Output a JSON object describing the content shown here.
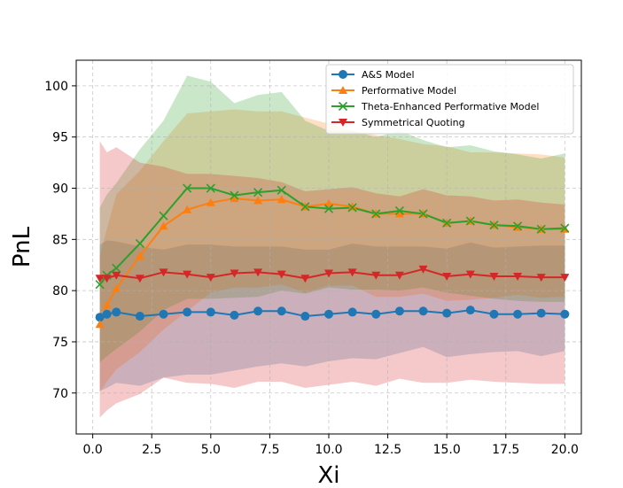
{
  "chart_data": {
    "type": "line",
    "title": "",
    "xlabel": "Xi",
    "ylabel": "PnL",
    "xlim": [
      -0.7,
      20.7
    ],
    "ylim": [
      66.0,
      102.5
    ],
    "xticks": [
      0.0,
      2.5,
      5.0,
      7.5,
      10.0,
      12.5,
      15.0,
      17.5,
      20.0
    ],
    "xtick_labels": [
      "0.0",
      "2.5",
      "5.0",
      "7.5",
      "10.0",
      "12.5",
      "15.0",
      "17.5",
      "20.0"
    ],
    "yticks": [
      70,
      75,
      80,
      85,
      90,
      95,
      100
    ],
    "ytick_labels": [
      "70",
      "75",
      "80",
      "85",
      "90",
      "95",
      "100"
    ],
    "grid": true,
    "legend_position": "top-right",
    "x": [
      0.3,
      0.6,
      1,
      2,
      3,
      4,
      5,
      6,
      7,
      8,
      9,
      10,
      11,
      12,
      13,
      14,
      15,
      16,
      17,
      18,
      19,
      20
    ],
    "series": [
      {
        "name": "A&S Model",
        "color": "#1f77b4",
        "marker": "circle",
        "values": [
          77.4,
          77.7,
          77.9,
          77.5,
          77.7,
          77.9,
          77.9,
          77.6,
          78.0,
          78.0,
          77.5,
          77.7,
          77.9,
          77.7,
          78.0,
          78.0,
          77.8,
          78.1,
          77.7,
          77.7,
          77.8,
          77.7
        ],
        "band_low": [
          70.2,
          70.5,
          71.0,
          70.7,
          71.5,
          71.8,
          71.8,
          72.2,
          72.6,
          72.9,
          72.6,
          73.1,
          73.4,
          73.3,
          73.9,
          74.5,
          73.5,
          73.8,
          74.0,
          74.1,
          73.6,
          74.1
        ],
        "band_high": [
          84.5,
          84.9,
          84.8,
          84.3,
          84.0,
          84.5,
          84.5,
          84.3,
          84.3,
          84.3,
          84.0,
          84.0,
          84.6,
          84.3,
          84.3,
          84.3,
          84.1,
          84.7,
          84.2,
          84.3,
          84.4,
          84.4
        ]
      },
      {
        "name": "Performative Model",
        "color": "#ff7f0e",
        "marker": "triangle-up",
        "values": [
          76.7,
          78.6,
          80.2,
          83.4,
          86.3,
          87.9,
          88.6,
          89.0,
          88.8,
          88.9,
          88.2,
          88.5,
          88.2,
          87.5,
          87.5,
          87.5,
          86.6,
          86.8,
          86.4,
          86.2,
          86.0,
          86.0
        ],
        "band_low": [
          70.1,
          71.1,
          72.3,
          74.0,
          76.2,
          78.0,
          79.8,
          80.3,
          80.3,
          80.6,
          79.8,
          80.5,
          80.5,
          79.4,
          79.4,
          79.7,
          79.0,
          79.1,
          79.3,
          79.6,
          79.3,
          79.4
        ],
        "band_high": [
          83.4,
          86.0,
          89.4,
          91.7,
          94.6,
          97.3,
          97.5,
          97.7,
          97.5,
          97.5,
          96.9,
          96.3,
          95.6,
          95.2,
          94.8,
          94.3,
          94.1,
          93.5,
          93.5,
          93.4,
          93.3,
          93.0
        ]
      },
      {
        "name": "Theta-Enhanced Performative Model",
        "color": "#2ca02c",
        "marker": "x",
        "values": [
          80.6,
          81.5,
          82.2,
          84.6,
          87.3,
          90.0,
          90.0,
          89.3,
          89.6,
          89.8,
          88.2,
          88.0,
          88.1,
          87.5,
          87.8,
          87.5,
          86.6,
          86.8,
          86.4,
          86.3,
          86.0,
          86.1
        ],
        "band_low": [
          73.0,
          73.6,
          74.3,
          76.0,
          78.1,
          79.2,
          79.2,
          79.3,
          79.4,
          80.0,
          79.7,
          80.3,
          80.1,
          80.1,
          80.0,
          80.3,
          79.8,
          79.5,
          79.2,
          79.0,
          78.9,
          78.9
        ],
        "band_high": [
          88.1,
          89.4,
          90.5,
          93.8,
          96.6,
          101.0,
          100.4,
          98.3,
          99.1,
          99.4,
          96.6,
          95.6,
          95.6,
          95.0,
          95.6,
          94.7,
          94.0,
          94.2,
          93.6,
          93.3,
          92.9,
          93.4
        ]
      },
      {
        "name": "Symmetrical Quoting",
        "color": "#d62728",
        "marker": "triangle-down",
        "values": [
          81.2,
          81.2,
          81.5,
          81.2,
          81.8,
          81.6,
          81.3,
          81.7,
          81.8,
          81.6,
          81.2,
          81.7,
          81.8,
          81.5,
          81.5,
          82.1,
          81.4,
          81.6,
          81.4,
          81.4,
          81.3,
          81.3
        ],
        "band_low": [
          67.6,
          68.3,
          69.0,
          69.9,
          71.5,
          71.0,
          70.9,
          70.5,
          71.1,
          71.1,
          70.5,
          70.8,
          71.1,
          70.7,
          71.4,
          71.0,
          71.0,
          71.3,
          71.1,
          71.0,
          70.9,
          70.9
        ],
        "band_high": [
          94.6,
          93.5,
          94.0,
          92.5,
          92.1,
          91.4,
          91.4,
          91.2,
          91.0,
          90.6,
          89.7,
          89.9,
          90.1,
          89.5,
          89.2,
          89.9,
          89.3,
          89.2,
          88.8,
          88.9,
          88.6,
          88.4
        ]
      }
    ]
  }
}
